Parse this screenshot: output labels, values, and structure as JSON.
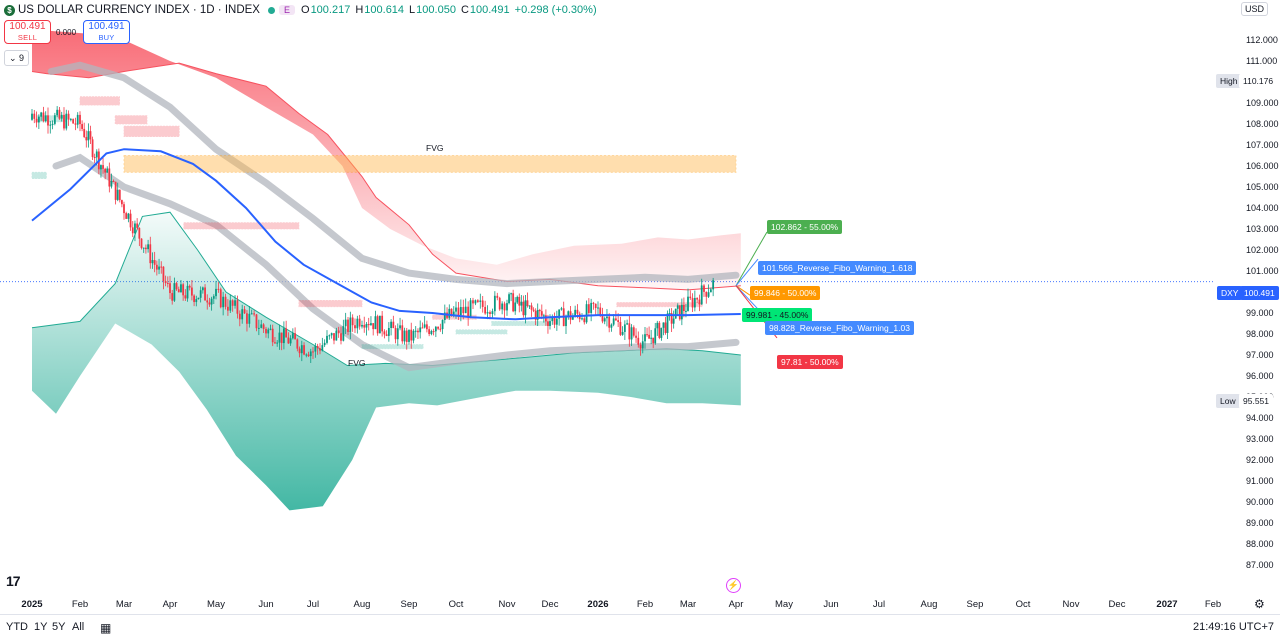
{
  "header": {
    "title": "US DOLLAR CURRENCY INDEX · 1D · INDEX",
    "badge": "E",
    "o_label": "O",
    "o_val": "100.217",
    "h_label": "H",
    "h_val": "100.614",
    "l_label": "L",
    "l_val": "100.050",
    "c_label": "C",
    "c_val": "100.491",
    "change": "+0.298 (+0.30%)"
  },
  "trade": {
    "sell_price": "100.491",
    "sell_label": "SELL",
    "spread": "0.000",
    "buy_price": "100.491",
    "buy_label": "BUY"
  },
  "indicators": {
    "count": "9"
  },
  "currency": "USD",
  "price_axis": {
    "labels": [
      "112.000",
      "111.000",
      "109.000",
      "108.000",
      "107.000",
      "106.000",
      "105.000",
      "104.000",
      "103.000",
      "102.000",
      "101.000",
      "100.000",
      "99.000",
      "98.000",
      "97.000",
      "96.000",
      "95.000",
      "94.000",
      "93.000",
      "92.000",
      "91.000",
      "90.000",
      "89.000",
      "88.000",
      "87.000"
    ],
    "high_label": "High",
    "high_value": "110.176",
    "low_label": "Low",
    "low_value": "95.551",
    "current_symbol": "DXY",
    "current_value": "100.491"
  },
  "time_axis": [
    "2025",
    "Feb",
    "Mar",
    "Apr",
    "May",
    "Jun",
    "Jul",
    "Aug",
    "Sep",
    "Oct",
    "Nov",
    "Dec",
    "2026",
    "Feb",
    "Mar",
    "Apr",
    "May",
    "Jun",
    "Jul",
    "Aug",
    "Sep",
    "Oct",
    "Nov",
    "Dec",
    "2027",
    "Feb"
  ],
  "annotations": {
    "fvg_top": "FVG",
    "fvg_bottom": "FVG",
    "targets": [
      {
        "text": "102.862 - 55.00%",
        "color": "#4caf50"
      },
      {
        "text": "101.566_Reverse_Fibo_Warning_1.618",
        "color": "#448aff"
      },
      {
        "text": "99.846 - 50.00%",
        "color": "#ff9800"
      },
      {
        "text": "99.981 - 45.00%",
        "color": "#00e676"
      },
      {
        "text": "98.828_Reverse_Fibo_Warning_1.03",
        "color": "#448aff"
      },
      {
        "text": "97.81 - 50.00%",
        "color": "#f23645"
      }
    ]
  },
  "bottom_bar": {
    "ranges": [
      "YTD",
      "1Y",
      "5Y",
      "All"
    ],
    "clock": "21:49:16 UTC+7"
  },
  "colors": {
    "up": "#089981",
    "down": "#f23645",
    "ma": "#2962ff",
    "band_red": "#f7525f",
    "band_green": "#22ab94"
  },
  "chart_data": {
    "type": "line",
    "title": "US DOLLAR CURRENCY INDEX · 1D · INDEX",
    "ylim": [
      86.5,
      112.5
    ],
    "x": [
      "2025-01",
      "2025-02",
      "2025-03",
      "2025-04",
      "2025-05",
      "2025-06",
      "2025-07",
      "2025-08",
      "2025-09",
      "2025-10",
      "2025-11",
      "2025-12",
      "2026-01",
      "2026-02",
      "2026-03",
      "2026-04"
    ],
    "series": [
      {
        "name": "DXY",
        "values": [
          108.5,
          108.0,
          104.0,
          100.0,
          99.8,
          98.2,
          97.2,
          98.8,
          97.8,
          99.0,
          99.6,
          98.7,
          99.1,
          97.6,
          99.4,
          100.491
        ]
      }
    ]
  }
}
